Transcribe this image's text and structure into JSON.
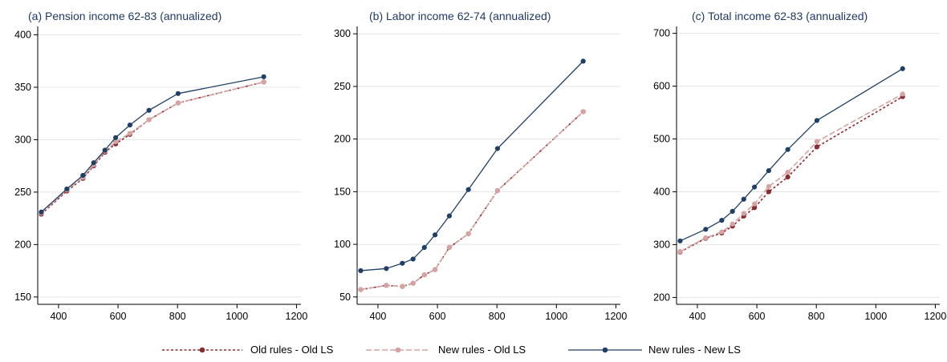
{
  "colors": {
    "old_old": "#8b2a2f",
    "new_old": "#d5a3a1",
    "new_new": "#1f3f66",
    "grid": "#e4e4e4",
    "title": "#1f3a66"
  },
  "legend": {
    "old_old": "Old rules - Old LS",
    "new_old": "New rules - Old LS",
    "new_new": "New rules - New LS"
  },
  "chart_data": [
    {
      "type": "line",
      "title": "(a) Pension income 62-83 (annualized)",
      "xlabel": "",
      "ylabel": "",
      "xlim": [
        330,
        1215
      ],
      "ylim": [
        143,
        408
      ],
      "xticks": [
        400,
        600,
        800,
        1000,
        1200
      ],
      "yticks": [
        150,
        200,
        250,
        300,
        350,
        400
      ],
      "grid": true,
      "x": [
        342,
        428,
        482,
        518,
        556,
        592,
        640,
        704,
        802,
        1090
      ],
      "series": [
        {
          "name": "Old rules - Old LS",
          "style": "dashed",
          "values": [
            229,
            251,
            263,
            275,
            288,
            296,
            305,
            319,
            335,
            355
          ]
        },
        {
          "name": "New rules - Old LS",
          "style": "dashed",
          "values": [
            230,
            252,
            264,
            276,
            289,
            298,
            306,
            319,
            335,
            355
          ]
        },
        {
          "name": "New rules - New LS",
          "style": "solid",
          "values": [
            231,
            253,
            266,
            278,
            290,
            302,
            314,
            328,
            344,
            360
          ]
        }
      ]
    },
    {
      "type": "line",
      "title": "(b) Labor income 62-74 (annualized)",
      "xlabel": "",
      "ylabel": "",
      "xlim": [
        330,
        1215
      ],
      "ylim": [
        43,
        307
      ],
      "xticks": [
        400,
        600,
        800,
        1000,
        1200
      ],
      "yticks": [
        50,
        100,
        150,
        200,
        250,
        300
      ],
      "grid": true,
      "x": [
        342,
        428,
        482,
        518,
        556,
        592,
        640,
        704,
        802,
        1090
      ],
      "series": [
        {
          "name": "Old rules - Old LS",
          "style": "dashed",
          "values": [
            57,
            61,
            60,
            63,
            71,
            76,
            97,
            110,
            151,
            226
          ]
        },
        {
          "name": "New rules - Old LS",
          "style": "dashed",
          "values": [
            57,
            61,
            60,
            63,
            71,
            76,
            97,
            110,
            151,
            226
          ]
        },
        {
          "name": "New rules - New LS",
          "style": "solid",
          "values": [
            75,
            77,
            82,
            86,
            97,
            109,
            127,
            152,
            191,
            274
          ]
        }
      ]
    },
    {
      "type": "line",
      "title": "(c) Total income 62-83 (annualized)",
      "xlabel": "",
      "ylabel": "",
      "xlim": [
        330,
        1215
      ],
      "ylim": [
        187,
        713
      ],
      "xticks": [
        400,
        600,
        800,
        1000,
        1200
      ],
      "yticks": [
        200,
        300,
        400,
        500,
        600,
        700
      ],
      "grid": true,
      "x": [
        342,
        428,
        482,
        518,
        556,
        592,
        640,
        704,
        802,
        1090
      ],
      "series": [
        {
          "name": "Old rules - Old LS",
          "style": "dashed",
          "values": [
            286,
            312,
            322,
            335,
            354,
            370,
            400,
            428,
            485,
            580
          ]
        },
        {
          "name": "New rules - Old LS",
          "style": "dashed",
          "values": [
            287,
            313,
            324,
            339,
            359,
            377,
            410,
            437,
            495,
            585
          ]
        },
        {
          "name": "New rules - New LS",
          "style": "solid",
          "values": [
            307,
            329,
            346,
            363,
            386,
            409,
            440,
            480,
            535,
            633
          ]
        }
      ]
    }
  ]
}
